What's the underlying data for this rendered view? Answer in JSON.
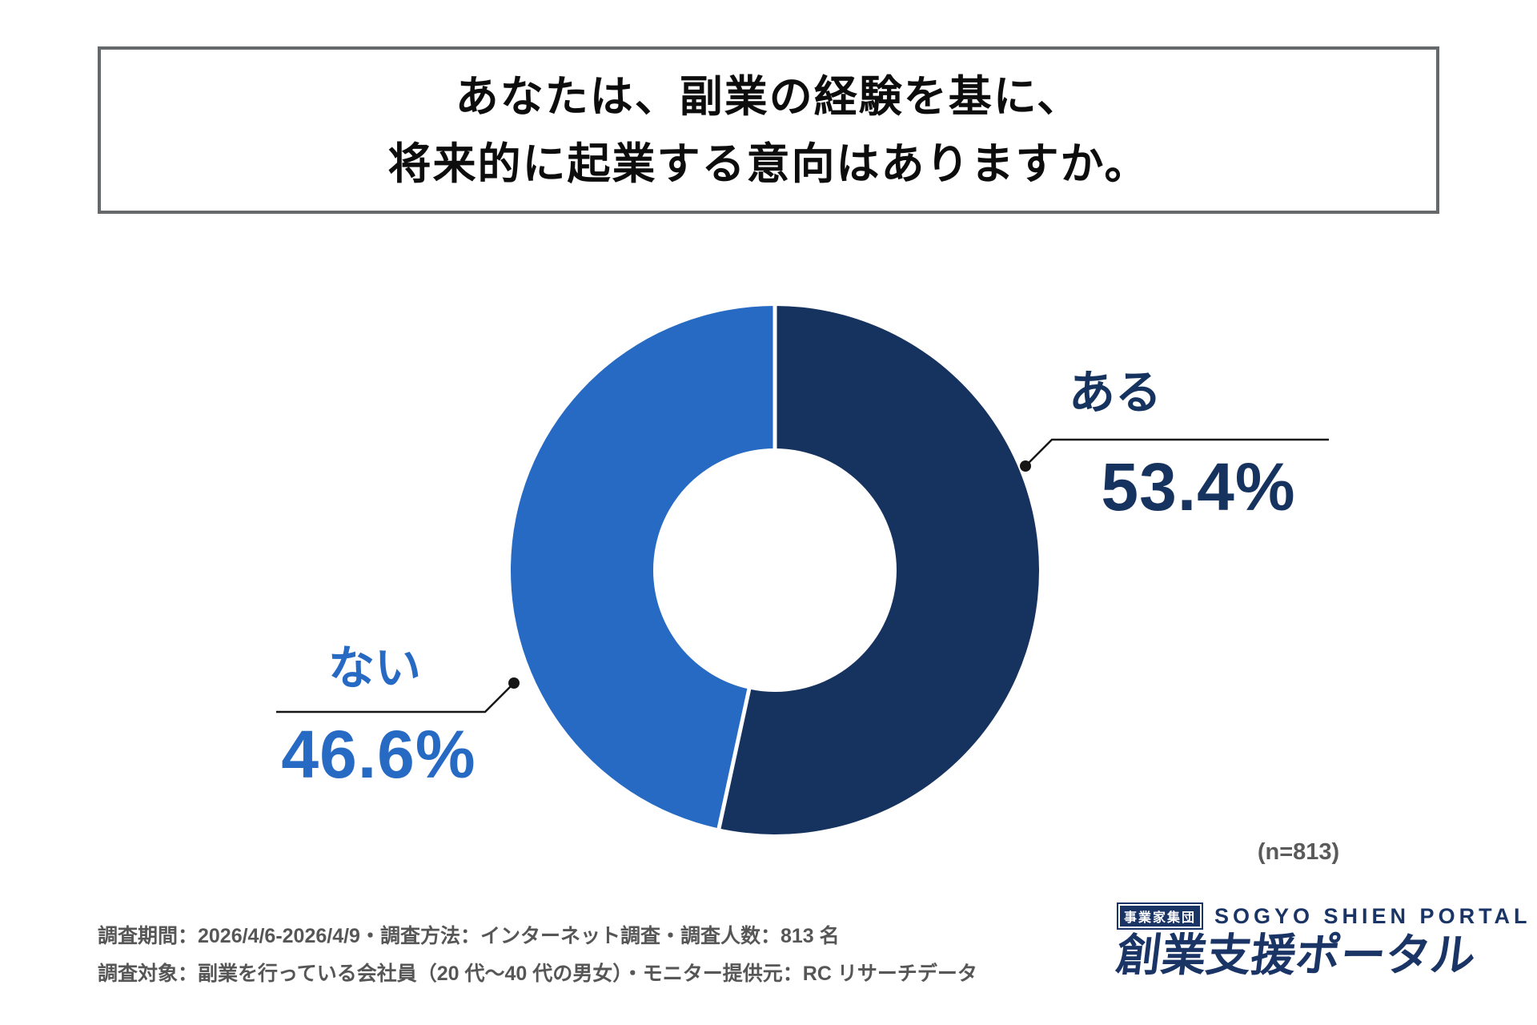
{
  "title": {
    "line1": "あなたは、副業の経験を基に、",
    "line2": "将来的に起業する意向はありますか。"
  },
  "chart_data": {
    "type": "pie",
    "style": "donut",
    "categories": [
      "ある",
      "ない"
    ],
    "values": [
      53.4,
      46.6
    ],
    "value_labels": [
      "53.4%",
      "46.6%"
    ],
    "colors": [
      "#16325E",
      "#276AC4"
    ],
    "start_angle_deg": 0,
    "direction": "clockwise",
    "sample_size": 813,
    "legend_position": "callout-labels"
  },
  "sample_note": "(n=813)",
  "footer": {
    "line1": "調査期間：2026/4/6-2026/4/9・調査方法：インターネット調査・調査人数：813 名",
    "line2": "調査対象：副業を行っている会社員（20 代〜40 代の男女）・モニター提供元：RC リサーチデータ"
  },
  "logo": {
    "badge": "事業家集団",
    "name_en": "SOGYO SHIEN PORTAL",
    "name_jp": "創業支援ポータル"
  }
}
